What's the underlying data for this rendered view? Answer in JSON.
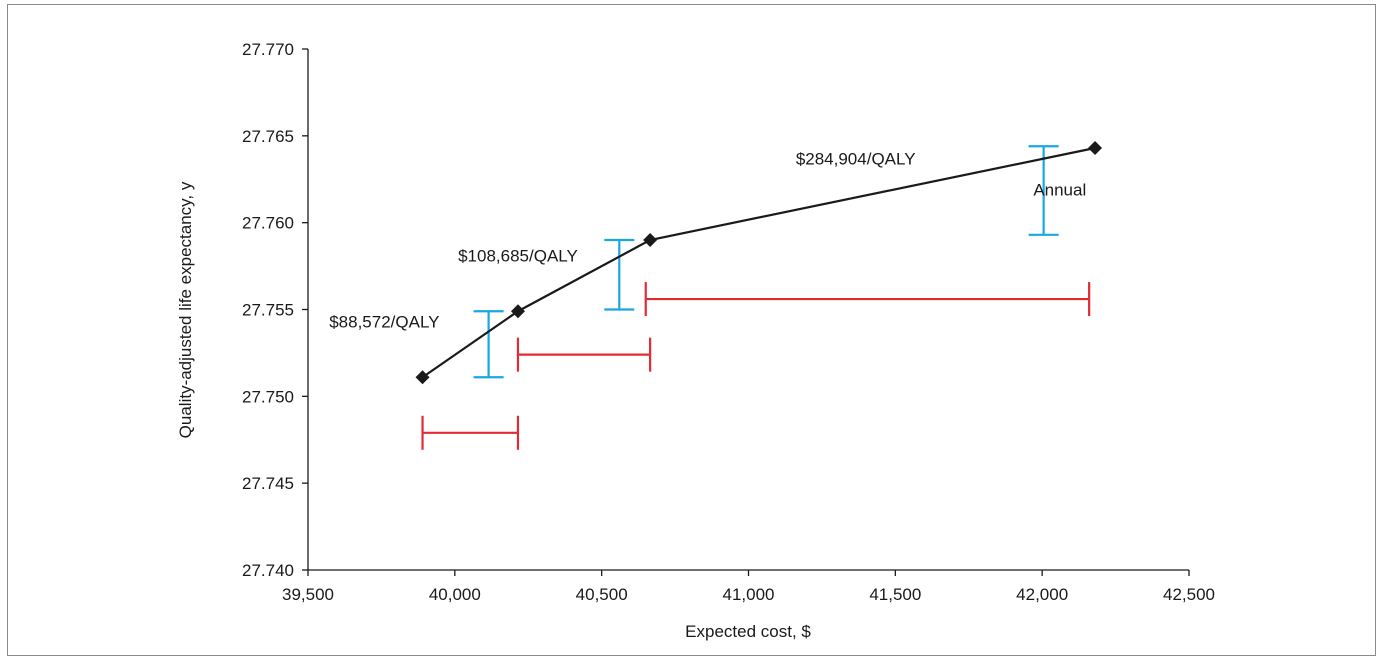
{
  "chart_data": {
    "type": "line",
    "xlabel": "Expected cost, $",
    "ylabel": "Quality-adjusted life expectancy, y",
    "xlim": [
      39500,
      42500
    ],
    "ylim": [
      27.74,
      27.77
    ],
    "x_ticks": [
      "39,500",
      "40,000",
      "40,500",
      "41,000",
      "41,500",
      "42,000",
      "42,500"
    ],
    "y_ticks": [
      "27.740",
      "27.745",
      "27.750",
      "27.755",
      "27.760",
      "27.765",
      "27.770"
    ],
    "grid": false,
    "series": [
      {
        "x": [
          39890,
          40215,
          40665,
          42180
        ],
        "y": [
          27.7511,
          27.7549,
          27.759,
          27.7643
        ],
        "line_color": "#1a1a1a",
        "marker": "diamond"
      }
    ],
    "cost_ranges": [
      {
        "y": 27.7479,
        "x_low": 39890,
        "x_high": 40215
      },
      {
        "y": 27.7524,
        "x_low": 40215,
        "x_high": 40665
      },
      {
        "y": 27.7556,
        "x_low": 40650,
        "x_high": 42160
      }
    ],
    "qaly_ranges": [
      {
        "x": 40115,
        "y_low": 27.7511,
        "y_high": 27.7549
      },
      {
        "x": 40560,
        "y_low": 27.755,
        "y_high": 27.759
      },
      {
        "x": 42005,
        "y_low": 27.7593,
        "y_high": 27.7644
      }
    ],
    "range_colors": {
      "cost": "#e02a34",
      "qaly": "#1aa7e0"
    },
    "annotations": [
      {
        "text": "$88,572/QALY",
        "x": 39760,
        "y": 27.7543
      },
      {
        "text": "$108,685/QALY",
        "x": 40215,
        "y": 27.7581
      },
      {
        "text": "$284,904/QALY",
        "x": 41365,
        "y": 27.7637
      },
      {
        "text": "Annual",
        "x": 42060,
        "y": 27.7619
      }
    ]
  }
}
